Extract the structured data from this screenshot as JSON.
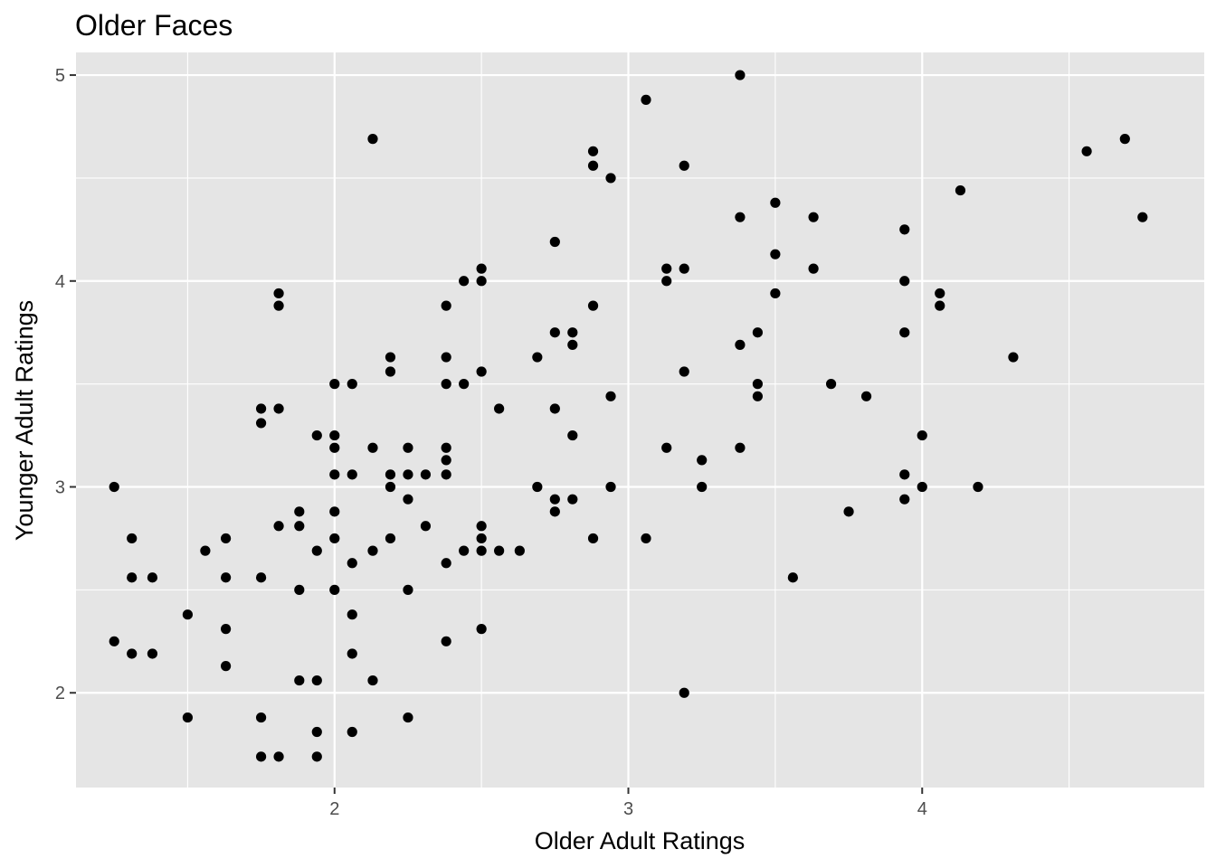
{
  "chart_data": {
    "type": "scatter",
    "title": "Older Faces",
    "xlabel": "Older Adult Ratings",
    "ylabel": "Younger Adult Ratings",
    "xlim": [
      1.12,
      4.96
    ],
    "ylim": [
      1.54,
      5.11
    ],
    "xticks": [
      2,
      3,
      4
    ],
    "yticks": [
      2,
      3,
      4,
      5
    ],
    "grid": true,
    "point_color": "#000000",
    "panel_color": "#e5e5e5",
    "gridline_color": "#ffffff",
    "points": [
      [
        1.25,
        2.25
      ],
      [
        1.25,
        3.0
      ],
      [
        1.31,
        2.75
      ],
      [
        1.31,
        2.56
      ],
      [
        1.31,
        2.19
      ],
      [
        1.38,
        2.56
      ],
      [
        1.38,
        2.19
      ],
      [
        1.5,
        1.88
      ],
      [
        1.5,
        2.38
      ],
      [
        1.56,
        2.69
      ],
      [
        1.63,
        2.75
      ],
      [
        1.63,
        2.56
      ],
      [
        1.63,
        2.31
      ],
      [
        1.63,
        2.13
      ],
      [
        1.75,
        3.38
      ],
      [
        1.75,
        3.31
      ],
      [
        1.75,
        2.56
      ],
      [
        1.75,
        1.88
      ],
      [
        1.75,
        1.69
      ],
      [
        1.81,
        3.94
      ],
      [
        1.81,
        3.88
      ],
      [
        1.81,
        3.38
      ],
      [
        1.81,
        2.81
      ],
      [
        1.81,
        1.69
      ],
      [
        1.88,
        2.88
      ],
      [
        1.88,
        2.81
      ],
      [
        1.88,
        2.5
      ],
      [
        1.88,
        2.06
      ],
      [
        1.94,
        3.25
      ],
      [
        1.94,
        2.69
      ],
      [
        1.94,
        2.06
      ],
      [
        1.94,
        1.81
      ],
      [
        1.94,
        1.69
      ],
      [
        2.0,
        3.5
      ],
      [
        2.0,
        3.25
      ],
      [
        2.0,
        3.19
      ],
      [
        2.0,
        3.06
      ],
      [
        2.0,
        2.88
      ],
      [
        2.0,
        2.75
      ],
      [
        2.0,
        2.5
      ],
      [
        2.06,
        3.5
      ],
      [
        2.06,
        3.06
      ],
      [
        2.06,
        2.63
      ],
      [
        2.06,
        2.38
      ],
      [
        2.06,
        2.19
      ],
      [
        2.06,
        1.81
      ],
      [
        2.13,
        4.69
      ],
      [
        2.13,
        3.19
      ],
      [
        2.13,
        2.69
      ],
      [
        2.13,
        2.06
      ],
      [
        2.19,
        3.63
      ],
      [
        2.19,
        3.56
      ],
      [
        2.19,
        3.06
      ],
      [
        2.19,
        3.0
      ],
      [
        2.19,
        2.75
      ],
      [
        2.25,
        3.19
      ],
      [
        2.25,
        3.06
      ],
      [
        2.25,
        2.94
      ],
      [
        2.25,
        2.5
      ],
      [
        2.25,
        1.88
      ],
      [
        2.31,
        3.06
      ],
      [
        2.31,
        2.81
      ],
      [
        2.38,
        3.88
      ],
      [
        2.38,
        3.63
      ],
      [
        2.38,
        3.5
      ],
      [
        2.38,
        3.19
      ],
      [
        2.38,
        3.13
      ],
      [
        2.38,
        3.06
      ],
      [
        2.38,
        2.63
      ],
      [
        2.38,
        2.25
      ],
      [
        2.44,
        4.0
      ],
      [
        2.44,
        3.5
      ],
      [
        2.44,
        2.69
      ],
      [
        2.5,
        4.06
      ],
      [
        2.5,
        4.0
      ],
      [
        2.5,
        3.56
      ],
      [
        2.5,
        2.81
      ],
      [
        2.5,
        2.75
      ],
      [
        2.5,
        2.69
      ],
      [
        2.5,
        2.31
      ],
      [
        2.56,
        3.38
      ],
      [
        2.56,
        2.69
      ],
      [
        2.63,
        2.69
      ],
      [
        2.69,
        3.63
      ],
      [
        2.69,
        3.0
      ],
      [
        2.75,
        4.19
      ],
      [
        2.75,
        3.75
      ],
      [
        2.75,
        3.38
      ],
      [
        2.75,
        2.94
      ],
      [
        2.75,
        2.88
      ],
      [
        2.81,
        3.75
      ],
      [
        2.81,
        3.69
      ],
      [
        2.81,
        3.25
      ],
      [
        2.81,
        2.94
      ],
      [
        2.88,
        4.63
      ],
      [
        2.88,
        4.56
      ],
      [
        2.88,
        3.88
      ],
      [
        2.88,
        2.75
      ],
      [
        2.94,
        4.5
      ],
      [
        2.94,
        3.44
      ],
      [
        2.94,
        3.0
      ],
      [
        3.06,
        4.88
      ],
      [
        3.06,
        2.75
      ],
      [
        3.13,
        4.06
      ],
      [
        3.13,
        4.0
      ],
      [
        3.13,
        3.19
      ],
      [
        3.19,
        4.56
      ],
      [
        3.19,
        4.06
      ],
      [
        3.19,
        3.56
      ],
      [
        3.19,
        2.0
      ],
      [
        3.25,
        3.13
      ],
      [
        3.25,
        3.0
      ],
      [
        3.38,
        5.0
      ],
      [
        3.38,
        4.31
      ],
      [
        3.38,
        3.69
      ],
      [
        3.38,
        3.19
      ],
      [
        3.44,
        3.75
      ],
      [
        3.44,
        3.5
      ],
      [
        3.44,
        3.44
      ],
      [
        3.5,
        4.38
      ],
      [
        3.5,
        4.13
      ],
      [
        3.5,
        3.94
      ],
      [
        3.56,
        2.56
      ],
      [
        3.63,
        4.31
      ],
      [
        3.63,
        4.06
      ],
      [
        3.69,
        3.5
      ],
      [
        3.75,
        2.88
      ],
      [
        3.81,
        3.44
      ],
      [
        3.94,
        4.25
      ],
      [
        3.94,
        4.0
      ],
      [
        3.94,
        3.75
      ],
      [
        3.94,
        3.06
      ],
      [
        3.94,
        2.94
      ],
      [
        4.0,
        3.25
      ],
      [
        4.0,
        3.0
      ],
      [
        4.06,
        3.94
      ],
      [
        4.06,
        3.88
      ],
      [
        4.13,
        4.44
      ],
      [
        4.19,
        3.0
      ],
      [
        4.31,
        3.63
      ],
      [
        4.56,
        4.63
      ],
      [
        4.69,
        4.69
      ],
      [
        4.75,
        4.31
      ]
    ]
  }
}
